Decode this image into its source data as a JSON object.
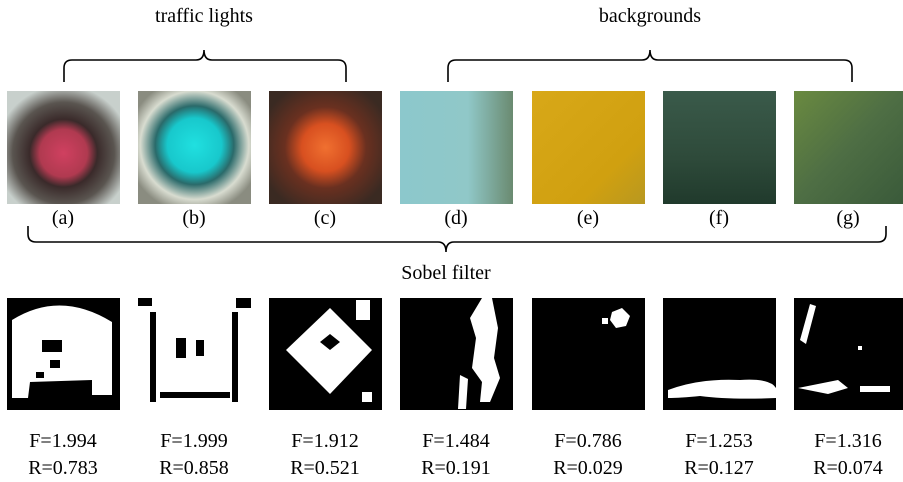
{
  "top_braces": [
    {
      "label": "traffic lights"
    },
    {
      "label": "backgrounds"
    }
  ],
  "bottom_brace": {
    "label": "Sobel filter"
  },
  "panels": [
    {
      "label": "(a)",
      "F": "F=1.994",
      "R": "R=0.783"
    },
    {
      "label": "(b)",
      "F": "F=1.999",
      "R": "R=0.858"
    },
    {
      "label": "(c)",
      "F": "F=1.912",
      "R": "R=0.521"
    },
    {
      "label": "(d)",
      "F": "F=1.484",
      "R": "R=0.191"
    },
    {
      "label": "(e)",
      "F": "F=0.786",
      "R": "R=0.029"
    },
    {
      "label": "(f)",
      "F": "F=1.253",
      "R": "R=0.127"
    },
    {
      "label": "(g)",
      "F": "F=1.316",
      "R": "R=0.074"
    }
  ]
}
